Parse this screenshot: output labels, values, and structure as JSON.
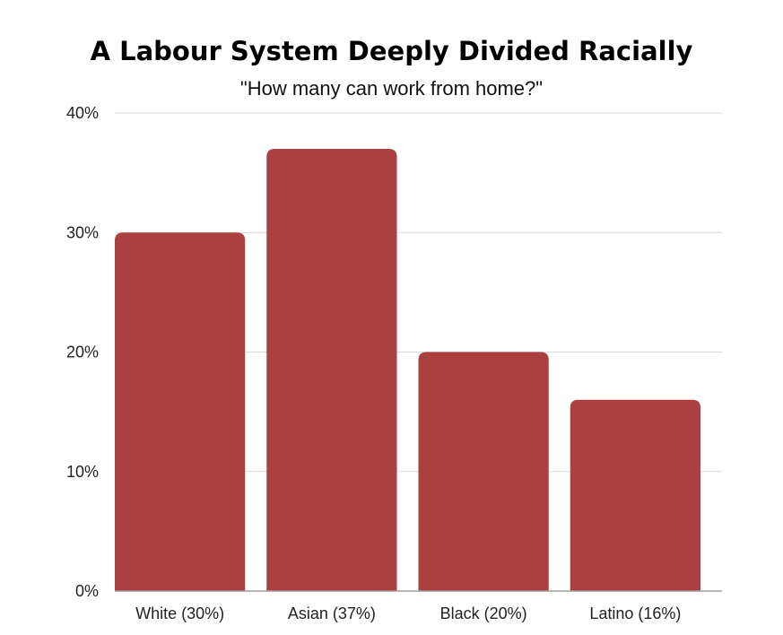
{
  "chart_data": {
    "type": "bar",
    "title": "A Labour System Deeply Divided Racially",
    "subtitle": "\"How many can work from home?\"",
    "categories": [
      "White (30%)",
      "Asian (37%)",
      "Black (20%)",
      "Latino (16%)"
    ],
    "values": [
      30,
      37,
      20,
      16
    ],
    "ylim": [
      0,
      40
    ],
    "yticks": [
      0,
      10,
      20,
      30,
      40
    ],
    "ytick_labels": [
      "0%",
      "10%",
      "20%",
      "30%",
      "40%"
    ],
    "grid": true,
    "legend": "none",
    "bar_color": "#ac3f3f",
    "grid_color": "#d9d9d9",
    "axis_color": "#9e9e9e"
  }
}
